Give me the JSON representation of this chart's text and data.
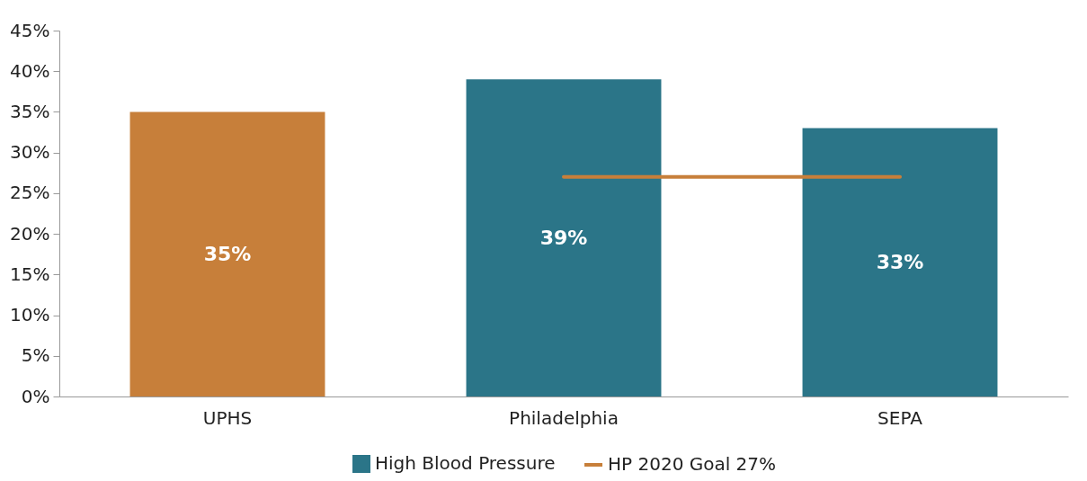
{
  "chart_data": {
    "type": "bar",
    "categories": [
      "UPHS",
      "Philadelphia",
      "SEPA"
    ],
    "series": [
      {
        "name": "High Blood Pressure",
        "color": "#2b7588",
        "colors": [
          "#c77f3a",
          "#2b7588",
          "#2b7588"
        ],
        "values": [
          35,
          39,
          33
        ],
        "value_labels": [
          "35%",
          "39%",
          "33%"
        ]
      },
      {
        "name": "HP 2020 Goal 27%",
        "type": "line",
        "color": "#c77f3a",
        "values": [
          null,
          27,
          27
        ]
      }
    ],
    "ylim": [
      0,
      45
    ],
    "yticks": [
      {
        "value": 0,
        "label": "0%"
      },
      {
        "value": 5,
        "label": "5%"
      },
      {
        "value": 10,
        "label": "10%"
      },
      {
        "value": 15,
        "label": "15%"
      },
      {
        "value": 20,
        "label": "20%"
      },
      {
        "value": 25,
        "label": "25%"
      },
      {
        "value": 30,
        "label": "30%"
      },
      {
        "value": 35,
        "label": "35%"
      },
      {
        "value": 40,
        "label": "40%"
      },
      {
        "value": 45,
        "label": "45%"
      }
    ],
    "legend": "bottom"
  }
}
